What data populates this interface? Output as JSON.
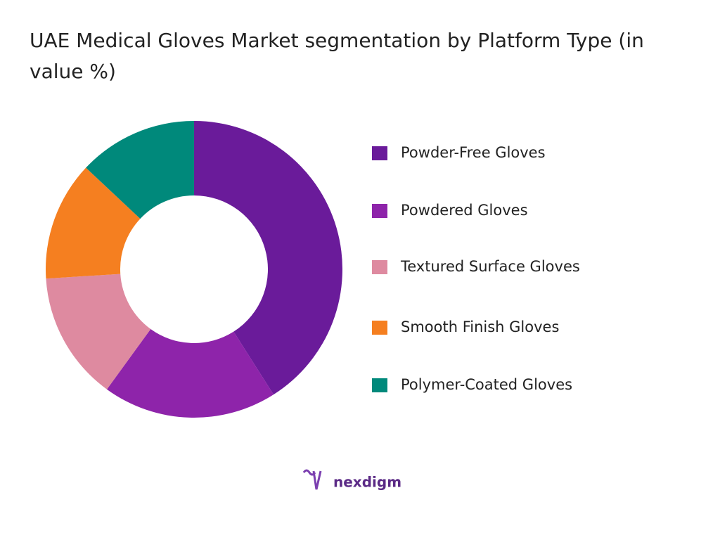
{
  "chart_data": {
    "type": "donut",
    "title": "UAE Medical Gloves Market segmentation by Platform Type (in value %)",
    "categories": [
      "Powder-Free Gloves",
      "Powdered Gloves",
      "Textured Surface Gloves",
      "Smooth Finish Gloves",
      "Polymer-Coated Gloves"
    ],
    "values": [
      41,
      19,
      14,
      13,
      13
    ],
    "colors": [
      "#6a1b9a",
      "#8e24aa",
      "#de8aa0",
      "#f57f20",
      "#00897b"
    ],
    "legend": "right"
  },
  "brand": "nexdigm"
}
